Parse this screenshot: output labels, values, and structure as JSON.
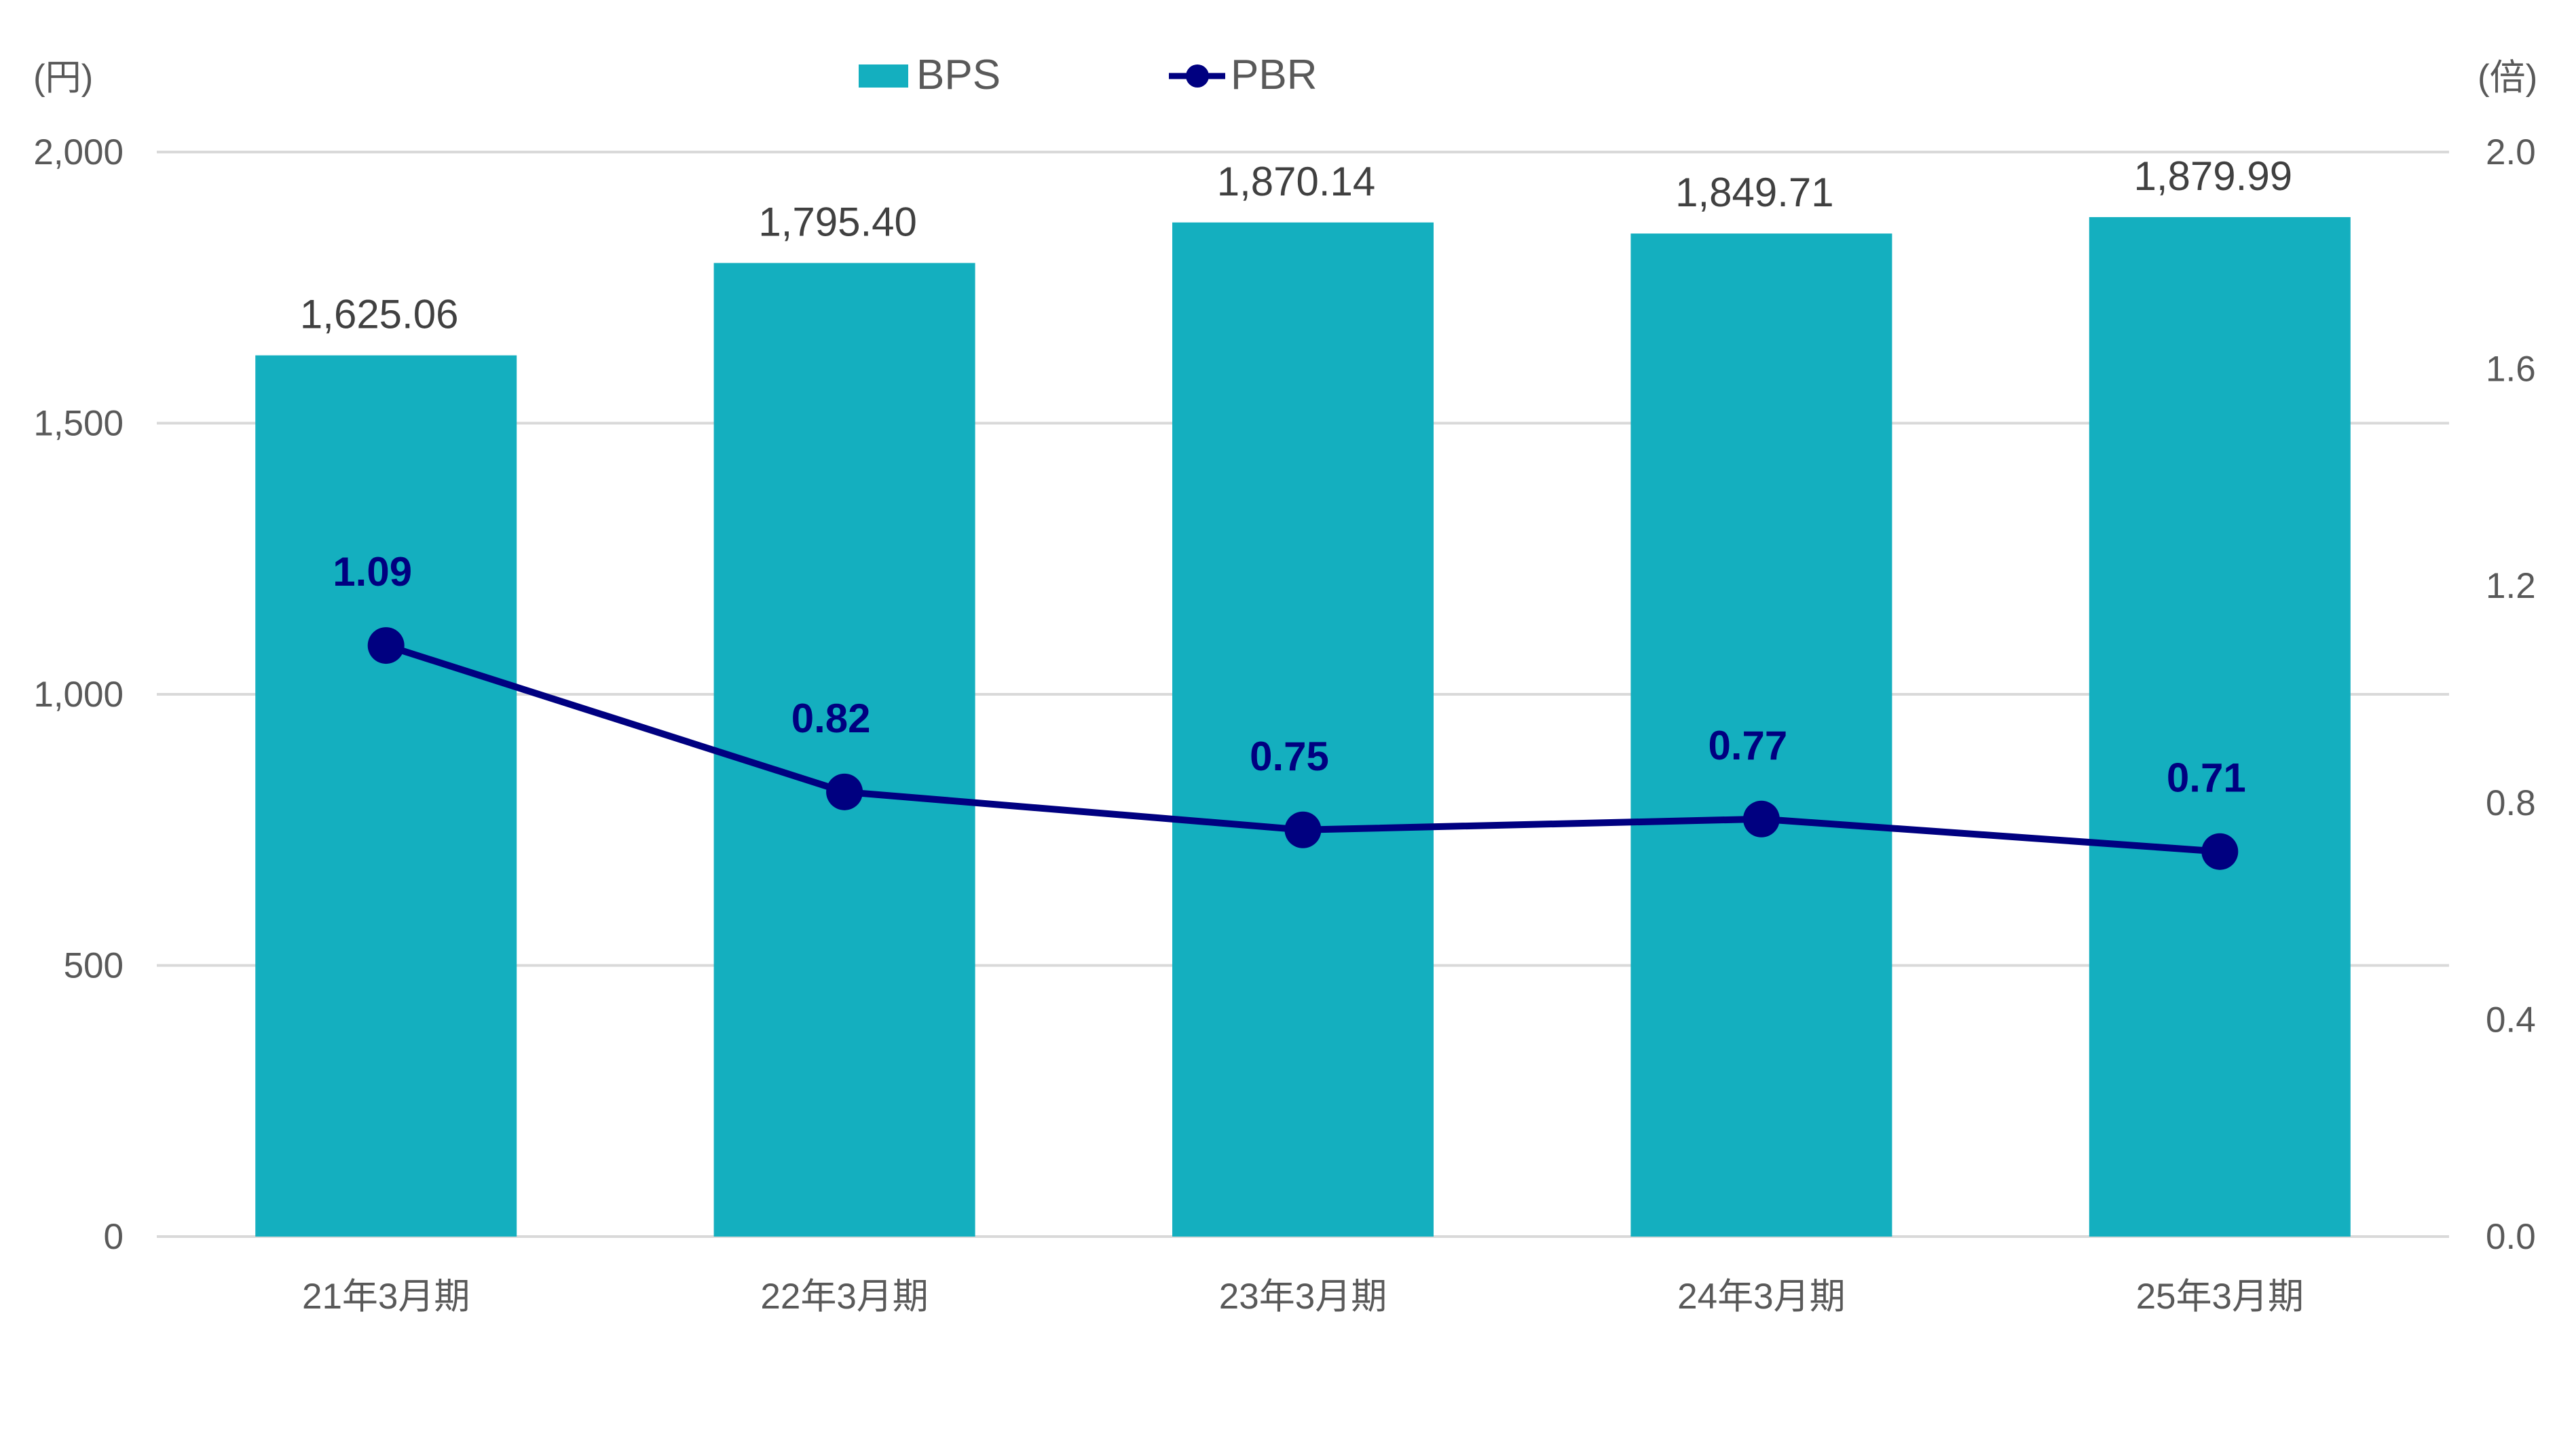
{
  "chart_data": {
    "type": "bar+line",
    "categories": [
      "21年3月期",
      "22年3月期",
      "23年3月期",
      "24年3月期",
      "25年3月期"
    ],
    "series": [
      {
        "name": "BPS",
        "type": "bar",
        "axis": "left",
        "color": "#14AFBF",
        "values": [
          1625.06,
          1795.4,
          1870.14,
          1849.71,
          1879.99
        ],
        "labels": [
          "1,625.06",
          "1,795.40",
          "1,870.14",
          "1,849.71",
          "1,879.99"
        ]
      },
      {
        "name": "PBR",
        "type": "line",
        "axis": "right",
        "color": "#000080",
        "values": [
          1.09,
          0.82,
          0.75,
          0.77,
          0.71
        ],
        "labels": [
          "1.09",
          "0.82",
          "0.75",
          "0.77",
          "0.71"
        ]
      }
    ],
    "left_axis": {
      "unit": "(円)",
      "ylim": [
        0,
        2000
      ],
      "ticks": [
        0,
        500,
        1000,
        1500,
        2000
      ],
      "tick_labels": [
        "0",
        "500",
        "1,000",
        "1,500",
        "2,000"
      ]
    },
    "right_axis": {
      "unit": "(倍)",
      "ylim": [
        0,
        2.0
      ],
      "ticks": [
        0,
        0.4,
        0.8,
        1.2,
        1.6,
        2.0
      ],
      "tick_labels": [
        "0.0",
        "0.4",
        "0.8",
        "1.2",
        "1.6",
        "2.0"
      ]
    },
    "legend": {
      "position": "top-center",
      "entries": [
        "BPS",
        "PBR"
      ]
    },
    "grid": true
  }
}
